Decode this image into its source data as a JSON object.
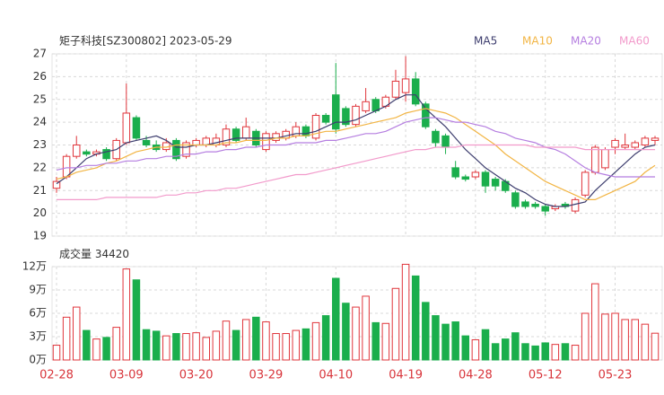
{
  "chart_data": {
    "type": "candlestick",
    "title": "矩子科技[SZ300802] 2023-05-29",
    "categories": [
      "02-28",
      null,
      null,
      null,
      null,
      null,
      null,
      "03-09",
      null,
      null,
      null,
      null,
      null,
      null,
      "03-20",
      null,
      null,
      null,
      null,
      null,
      null,
      "03-29",
      null,
      null,
      null,
      null,
      null,
      null,
      "04-10",
      null,
      null,
      null,
      null,
      null,
      null,
      "04-19",
      null,
      null,
      null,
      null,
      null,
      null,
      "04-28",
      null,
      null,
      null,
      null,
      null,
      null,
      "05-12",
      null,
      null,
      null,
      null,
      null,
      null,
      "05-23",
      null,
      null,
      null,
      null
    ],
    "open": [
      21.1,
      21.6,
      22.5,
      22.7,
      22.6,
      22.8,
      22.4,
      23.1,
      24.2,
      23.2,
      23.0,
      22.8,
      23.2,
      22.5,
      23.0,
      23.0,
      23.0,
      23.0,
      23.7,
      23.3,
      23.6,
      22.8,
      23.2,
      23.3,
      23.4,
      23.8,
      23.3,
      24.3,
      25.2,
      24.6,
      23.9,
      24.5,
      25.0,
      24.7,
      25.1,
      25.3,
      25.9,
      24.8,
      23.6,
      23.4,
      22.0,
      21.6,
      21.6,
      21.8,
      21.5,
      21.4,
      20.9,
      20.5,
      20.4,
      20.3,
      20.2,
      20.4,
      20.1,
      20.8,
      21.8,
      22.0,
      22.9,
      22.9,
      22.9,
      23.0,
      23.2
    ],
    "high": [
      21.6,
      22.6,
      23.4,
      22.8,
      22.8,
      22.9,
      23.3,
      25.7,
      24.3,
      23.4,
      23.2,
      23.3,
      23.3,
      23.2,
      23.3,
      23.4,
      23.5,
      23.9,
      23.8,
      24.2,
      23.7,
      23.6,
      23.6,
      23.7,
      24.0,
      23.9,
      24.4,
      24.4,
      26.6,
      24.7,
      24.8,
      25.5,
      25.1,
      25.2,
      26.3,
      26.9,
      26.2,
      24.9,
      23.7,
      23.5,
      22.3,
      21.7,
      21.9,
      21.9,
      21.6,
      21.5,
      21.0,
      20.6,
      20.5,
      20.4,
      20.4,
      20.5,
      20.7,
      21.9,
      23.0,
      22.9,
      23.3,
      23.5,
      23.2,
      23.4,
      23.4
    ],
    "low": [
      20.9,
      21.5,
      22.4,
      22.5,
      22.5,
      22.3,
      22.3,
      23.0,
      23.2,
      22.9,
      22.7,
      22.7,
      22.3,
      22.4,
      22.9,
      22.9,
      22.9,
      22.9,
      23.1,
      23.2,
      22.9,
      22.7,
      23.1,
      23.2,
      23.3,
      23.3,
      23.2,
      23.9,
      23.5,
      23.8,
      23.8,
      24.4,
      24.4,
      24.6,
      25.0,
      24.9,
      24.7,
      23.7,
      22.9,
      22.6,
      21.5,
      21.4,
      21.5,
      20.9,
      21.0,
      20.9,
      20.2,
      20.2,
      20.2,
      19.9,
      20.1,
      20.2,
      20.0,
      20.7,
      21.7,
      21.9,
      22.6,
      22.8,
      22.8,
      22.9,
      23.0
    ],
    "close": [
      21.4,
      22.5,
      23.0,
      22.6,
      22.7,
      22.4,
      23.2,
      24.4,
      23.3,
      23.0,
      22.8,
      23.1,
      22.4,
      23.1,
      23.2,
      23.3,
      23.3,
      23.7,
      23.2,
      23.8,
      23.0,
      23.5,
      23.5,
      23.6,
      23.8,
      23.4,
      24.3,
      24.0,
      23.7,
      23.9,
      24.7,
      24.9,
      24.5,
      25.1,
      25.8,
      25.9,
      24.8,
      23.8,
      23.1,
      22.9,
      21.6,
      21.5,
      21.8,
      21.2,
      21.2,
      21.0,
      20.3,
      20.3,
      20.3,
      20.1,
      20.3,
      20.3,
      20.6,
      21.8,
      22.9,
      22.8,
      23.2,
      23.0,
      23.1,
      23.3,
      23.3
    ],
    "up_color": "#e0353b",
    "down_color": "#1aae4c",
    "ylim": [
      19,
      27
    ],
    "yticks": [
      19,
      20,
      21,
      22,
      23,
      24,
      25,
      26,
      27
    ],
    "ma": [
      {
        "name": "MA5",
        "color": "#3d3d6e",
        "values": [
          21.3,
          21.6,
          22.0,
          22.4,
          22.6,
          22.7,
          22.8,
          23.1,
          23.2,
          23.3,
          23.4,
          23.2,
          22.9,
          22.9,
          23.0,
          23.0,
          23.1,
          23.2,
          23.3,
          23.3,
          23.3,
          23.3,
          23.3,
          23.4,
          23.5,
          23.5,
          23.6,
          23.8,
          24.0,
          24.0,
          24.1,
          24.3,
          24.5,
          24.7,
          25.0,
          25.2,
          25.2,
          24.6,
          24.2,
          23.8,
          23.3,
          22.8,
          22.4,
          22.0,
          21.7,
          21.4,
          21.1,
          20.9,
          20.6,
          20.4,
          20.3,
          20.3,
          20.4,
          20.5,
          21.0,
          21.4,
          21.8,
          22.2,
          22.6,
          22.9,
          23.0
        ]
      },
      {
        "name": "MA10",
        "color": "#f2b544",
        "values": [
          21.5,
          21.6,
          21.8,
          21.9,
          22.0,
          22.2,
          22.3,
          22.5,
          22.7,
          22.8,
          22.9,
          22.9,
          23.0,
          23.0,
          23.0,
          23.0,
          23.0,
          23.1,
          23.1,
          23.2,
          23.2,
          23.2,
          23.3,
          23.3,
          23.4,
          23.4,
          23.5,
          23.6,
          23.6,
          23.7,
          23.8,
          23.9,
          24.0,
          24.1,
          24.2,
          24.4,
          24.5,
          24.6,
          24.5,
          24.4,
          24.2,
          23.9,
          23.6,
          23.3,
          23.0,
          22.6,
          22.3,
          22.0,
          21.7,
          21.4,
          21.2,
          21.0,
          20.8,
          20.6,
          20.6,
          20.8,
          21.0,
          21.2,
          21.4,
          21.8,
          22.1
        ]
      },
      {
        "name": "MA20",
        "color": "#b57ee0",
        "values": [
          21.9,
          22.0,
          22.0,
          22.1,
          22.1,
          22.2,
          22.2,
          22.3,
          22.3,
          22.4,
          22.4,
          22.5,
          22.5,
          22.6,
          22.6,
          22.7,
          22.7,
          22.8,
          22.8,
          22.9,
          22.9,
          23.0,
          23.0,
          23.0,
          23.1,
          23.1,
          23.1,
          23.2,
          23.2,
          23.3,
          23.4,
          23.5,
          23.5,
          23.6,
          23.8,
          24.0,
          24.1,
          24.2,
          24.2,
          24.1,
          24.0,
          24.0,
          23.9,
          23.8,
          23.6,
          23.5,
          23.3,
          23.2,
          23.1,
          22.9,
          22.8,
          22.6,
          22.3,
          22.0,
          21.8,
          21.7,
          21.6,
          21.6,
          21.6,
          21.6,
          21.6
        ]
      },
      {
        "name": "MA60",
        "color": "#f29acb",
        "values": [
          20.6,
          20.6,
          20.6,
          20.6,
          20.6,
          20.7,
          20.7,
          20.7,
          20.7,
          20.7,
          20.7,
          20.8,
          20.8,
          20.9,
          20.9,
          21.0,
          21.0,
          21.1,
          21.1,
          21.2,
          21.3,
          21.4,
          21.5,
          21.6,
          21.7,
          21.7,
          21.8,
          21.9,
          22.0,
          22.1,
          22.2,
          22.3,
          22.4,
          22.5,
          22.6,
          22.7,
          22.8,
          22.8,
          22.9,
          22.9,
          22.9,
          23.0,
          23.0,
          23.0,
          23.0,
          23.0,
          23.0,
          23.0,
          22.9,
          22.9,
          22.9,
          22.9,
          22.9,
          22.8,
          22.8,
          22.8,
          22.8,
          22.8,
          22.8,
          22.8,
          22.8
        ]
      }
    ],
    "volume": {
      "title": "成交量",
      "values": [
        19000,
        55000,
        68000,
        38000,
        27000,
        29000,
        42000,
        117000,
        103000,
        39000,
        37000,
        31000,
        34000,
        34000,
        35000,
        29000,
        37000,
        50000,
        38000,
        52000,
        55000,
        49000,
        34000,
        34000,
        38000,
        40000,
        48000,
        57000,
        105000,
        73000,
        68000,
        82000,
        48000,
        47000,
        92000,
        123000,
        108000,
        74000,
        57000,
        46000,
        49000,
        31000,
        26000,
        39000,
        21000,
        27000,
        35000,
        21000,
        18000,
        22000,
        20000,
        21000,
        19000,
        60000,
        98000,
        59000,
        60000,
        52000,
        52000,
        46000,
        34420
      ],
      "ylim": [
        0,
        120000
      ],
      "yticks": [
        {
          "value": 0,
          "label": "0万"
        },
        {
          "value": 30000,
          "label": "3万"
        },
        {
          "value": 60000,
          "label": "6万"
        },
        {
          "value": 90000,
          "label": "9万"
        },
        {
          "value": 120000,
          "label": "12万"
        }
      ]
    },
    "grid": true
  }
}
